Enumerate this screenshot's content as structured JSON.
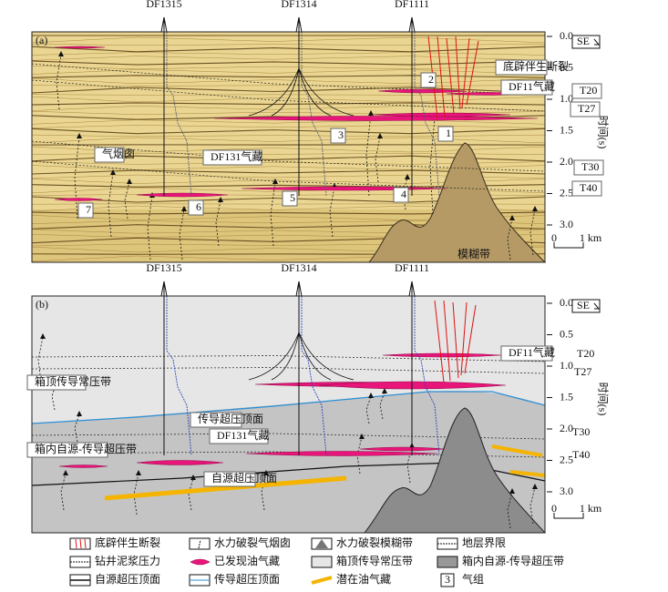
{
  "panels": [
    {
      "label": "(a)",
      "wells": [
        "DF1315",
        "DF1314",
        "DF1111"
      ],
      "direction": "SE",
      "axis_label": "时间(s)",
      "ticks": [
        {
          "value": 0,
          "label": "0.0"
        },
        {
          "value": 0.5,
          "label": "0.5"
        },
        {
          "value": 1,
          "label": "1.0"
        },
        {
          "value": 1.5,
          "label": "1.5"
        },
        {
          "value": 2,
          "label": "2.0"
        },
        {
          "value": 2.5,
          "label": "2.5"
        },
        {
          "value": 3,
          "label": "3.0"
        }
      ],
      "scale": {
        "start": "0",
        "length": "1 km"
      },
      "annotations": [
        "底辟伴生断裂",
        "DF11气藏",
        "T20",
        "T27",
        "T30",
        "T40",
        "气烟囱",
        "DF131气藏",
        "模糊带"
      ],
      "gas_groups": [
        "1",
        "2",
        "3",
        "4",
        "5",
        "6",
        "7"
      ]
    },
    {
      "label": "(b)",
      "wells": [
        "DF1315",
        "DF1314",
        "DF1111"
      ],
      "direction": "SE",
      "axis_label": "时间(s)",
      "ticks": [
        {
          "value": 0,
          "label": "0.0"
        },
        {
          "value": 0.5,
          "label": "0.5"
        },
        {
          "value": 1,
          "label": "1.0"
        },
        {
          "value": 1.5,
          "label": "1.5"
        },
        {
          "value": 2,
          "label": "2.0"
        },
        {
          "value": 2.5,
          "label": "2.5"
        },
        {
          "value": 3,
          "label": "3.0"
        }
      ],
      "scale": {
        "start": "0",
        "length": "1 km"
      },
      "annotations": [
        "DF11气藏",
        "T20",
        "T27",
        "T30",
        "T40",
        "箱顶传导常压带",
        "传导超压顶面",
        "DF131气藏",
        "箱内自源-传导超压带",
        "自源超压顶面"
      ]
    }
  ],
  "legend": [
    "底辟伴生断裂",
    "水力破裂气烟囱",
    "水力破裂模糊带",
    "地层界限",
    "钻井泥浆压力",
    "已发现油气藏",
    "箱顶传导常压带",
    "箱内自源-传导超压带",
    "自源超压顶面",
    "传导超压顶面",
    "潜在油气藏",
    "气组"
  ],
  "legend_gas_group": "3"
}
